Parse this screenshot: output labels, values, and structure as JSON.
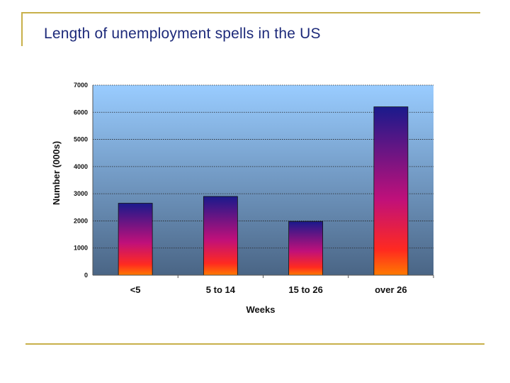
{
  "slide": {
    "title": "Length of unemployment spells in the US",
    "accent_color": "#c8b04a",
    "title_color": "#1d2a7a"
  },
  "chart_data": {
    "type": "bar",
    "title": "",
    "xlabel": "Weeks",
    "ylabel": "Number (000s)",
    "categories": [
      "<5",
      "5 to 14",
      "15 to 26",
      "over 26"
    ],
    "values": [
      2650,
      2900,
      1980,
      6200
    ],
    "ylim": [
      0,
      7000
    ],
    "yticks": [
      0,
      1000,
      2000,
      3000,
      4000,
      5000,
      6000,
      7000
    ],
    "grid": true,
    "legend": "none",
    "colors": {
      "bar_top": "#1a1a8c",
      "bar_mid": "#c0107a",
      "bar_bottom": "#ff4400",
      "bg_top": "#99ccff",
      "bg_bottom": "#4a6585"
    }
  }
}
